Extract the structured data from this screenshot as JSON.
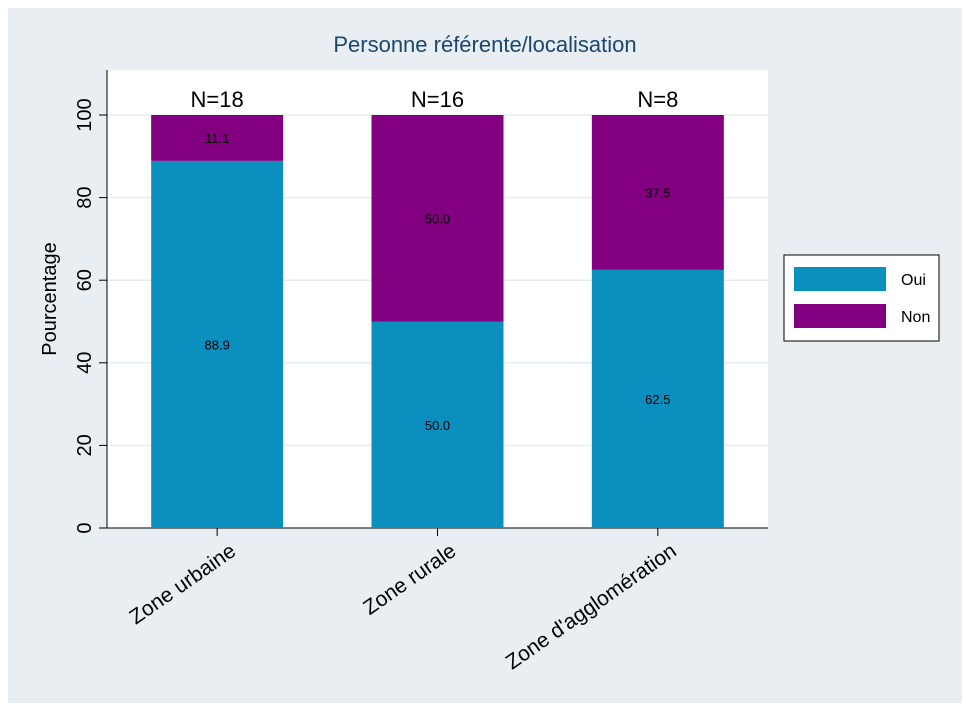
{
  "chart_data": {
    "type": "bar",
    "stacked": true,
    "title": "Personne référente/localisation",
    "ylabel": "Pourcentage",
    "xlabel": "",
    "ylim": [
      0,
      100
    ],
    "yticks": [
      0,
      20,
      40,
      60,
      80,
      100
    ],
    "categories": [
      "Zone urbaine",
      "Zone rurale",
      "Zone d'agglomération"
    ],
    "top_labels": [
      "N=18",
      "N=16",
      "N=8"
    ],
    "series": [
      {
        "name": "Oui",
        "color": "#0b8fbf",
        "values": [
          88.9,
          50.0,
          62.5
        ],
        "labels": [
          "88.9",
          "50.0",
          "62.5"
        ]
      },
      {
        "name": "Non",
        "color": "#820080",
        "values": [
          11.1,
          50.0,
          37.5
        ],
        "labels": [
          "11.1",
          "50.0",
          "37.5"
        ]
      }
    ],
    "grid": true,
    "legend_position": "right",
    "colors": {
      "background": "#e8eef1",
      "plot": "#ffffff",
      "title": "#1a476f",
      "grid": "#e6edf0"
    }
  }
}
